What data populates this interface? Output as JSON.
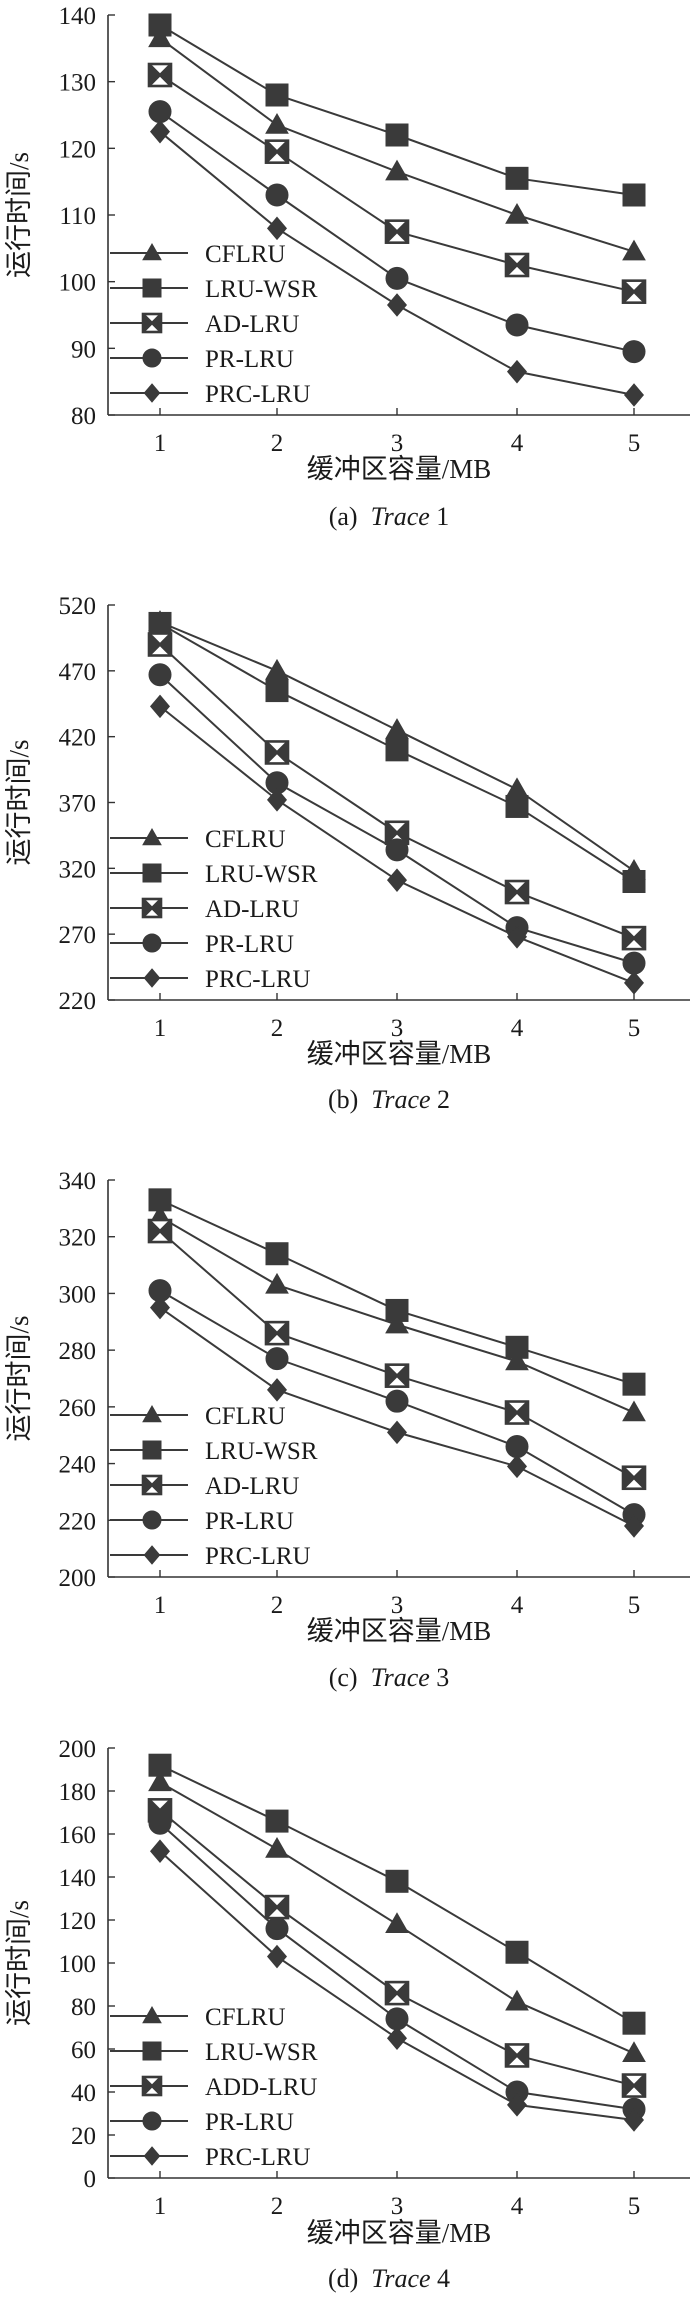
{
  "figure": {
    "colors": {
      "ink": "#3a3a3a",
      "axis": "#333333",
      "text": "#1a1a1a",
      "background": "#ffffff"
    }
  },
  "chart_data": [
    {
      "type": "line",
      "title": "",
      "caption_prefix": "(a)",
      "caption_trace": "Trace",
      "caption_number": "1",
      "xlabel": "缓冲区容量/MB",
      "ylabel": "运行时间/s",
      "x": [
        1,
        2,
        3,
        4,
        5
      ],
      "ylim": [
        80,
        140
      ],
      "yticks": [
        80,
        90,
        100,
        110,
        120,
        130,
        140
      ],
      "legend_position": "bottom-left",
      "grid": false,
      "series": [
        {
          "name": "CFLRU",
          "marker": "triangle",
          "values": [
            136.5,
            123.5,
            116.5,
            110,
            104.5
          ]
        },
        {
          "name": "LRU-WSR",
          "marker": "square",
          "values": [
            138.5,
            128,
            122,
            115.5,
            113
          ]
        },
        {
          "name": "AD-LRU",
          "marker": "boxcross",
          "values": [
            131,
            119.5,
            107.5,
            102.5,
            98.5
          ]
        },
        {
          "name": "PR-LRU",
          "marker": "circle",
          "values": [
            125.5,
            113,
            100.5,
            93.5,
            89.5
          ]
        },
        {
          "name": "PRC-LRU",
          "marker": "diamond",
          "values": [
            122.5,
            108,
            96.5,
            86.5,
            83
          ]
        }
      ]
    },
    {
      "type": "line",
      "title": "",
      "caption_prefix": "(b)",
      "caption_trace": "Trace",
      "caption_number": "2",
      "xlabel": "缓冲区容量/MB",
      "ylabel": "运行时间/s",
      "x": [
        1,
        2,
        3,
        4,
        5
      ],
      "ylim": [
        220,
        520
      ],
      "yticks": [
        220,
        270,
        320,
        370,
        420,
        470,
        520
      ],
      "legend_position": "bottom-left",
      "grid": false,
      "series": [
        {
          "name": "CFLRU",
          "marker": "triangle",
          "values": [
            507,
            470,
            425,
            380,
            318
          ]
        },
        {
          "name": "LRU-WSR",
          "marker": "square",
          "values": [
            506,
            455,
            410,
            367,
            310
          ]
        },
        {
          "name": "AD-LRU",
          "marker": "boxcross",
          "values": [
            490,
            408,
            347,
            302,
            267
          ]
        },
        {
          "name": "PR-LRU",
          "marker": "circle",
          "values": [
            467,
            385,
            334,
            275,
            248
          ]
        },
        {
          "name": "PRC-LRU",
          "marker": "diamond",
          "values": [
            443,
            372,
            311,
            268,
            233
          ]
        }
      ]
    },
    {
      "type": "line",
      "title": "",
      "caption_prefix": "(c)",
      "caption_trace": "Trace",
      "caption_number": "3",
      "xlabel": "缓冲区容量/MB",
      "ylabel": "运行时间/s",
      "x": [
        1,
        2,
        3,
        4,
        5
      ],
      "ylim": [
        200,
        340
      ],
      "yticks": [
        200,
        220,
        240,
        260,
        280,
        300,
        320,
        340
      ],
      "legend_position": "bottom-left",
      "grid": false,
      "series": [
        {
          "name": "CFLRU",
          "marker": "triangle",
          "values": [
            327,
            303,
            289,
            276,
            258
          ]
        },
        {
          "name": "LRU-WSR",
          "marker": "square",
          "values": [
            333,
            314,
            294,
            281,
            268
          ]
        },
        {
          "name": "AD-LRU",
          "marker": "boxcross",
          "values": [
            322,
            286,
            271,
            258,
            235
          ]
        },
        {
          "name": "PR-LRU",
          "marker": "circle",
          "values": [
            301,
            277,
            262,
            246,
            222
          ]
        },
        {
          "name": "PRC-LRU",
          "marker": "diamond",
          "values": [
            295,
            266,
            251,
            239,
            218
          ]
        }
      ]
    },
    {
      "type": "line",
      "title": "",
      "caption_prefix": "(d)",
      "caption_trace": "Trace",
      "caption_number": "4",
      "xlabel": "缓冲区容量/MB",
      "ylabel": "运行时间/s",
      "x": [
        1,
        2,
        3,
        4,
        5
      ],
      "ylim": [
        0,
        200
      ],
      "yticks": [
        0,
        20,
        40,
        60,
        80,
        100,
        120,
        140,
        160,
        180,
        200
      ],
      "legend_position": "bottom-left",
      "grid": false,
      "series": [
        {
          "name": "CFLRU",
          "marker": "triangle",
          "values": [
            184,
            153,
            118,
            82,
            58
          ]
        },
        {
          "name": "LRU-WSR",
          "marker": "square",
          "values": [
            192,
            166,
            138,
            105,
            72
          ]
        },
        {
          "name": "ADD-LRU",
          "marker": "boxcross",
          "values": [
            171,
            126,
            86,
            57,
            43
          ]
        },
        {
          "name": "PR-LRU",
          "marker": "circle",
          "values": [
            165,
            116,
            74,
            40,
            32
          ]
        },
        {
          "name": "PRC-LRU",
          "marker": "diamond",
          "values": [
            152,
            103,
            65,
            34,
            27
          ]
        }
      ]
    }
  ]
}
